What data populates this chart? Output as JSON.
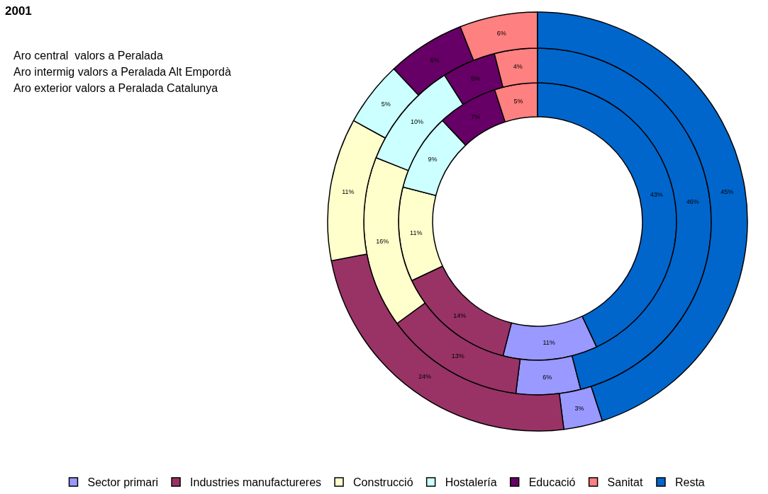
{
  "chart_data": {
    "type": "donut",
    "title": "2001",
    "annotations": [
      "Aro central  valors a Peralada",
      "Aro intermig valors a Peralada Alt Empordà",
      "Aro exterior valors a Peralada Catalunya"
    ],
    "categories": [
      "Sector primari",
      "Industries manufactureres",
      "Construcció",
      "Hostalería",
      "Educació",
      "Sanitat",
      "Resta"
    ],
    "colors": [
      "#9999ff",
      "#993366",
      "#ffffcc",
      "#ccffff",
      "#660066",
      "#ff8080",
      "#0066cc"
    ],
    "series": [
      {
        "values": [
          11,
          14,
          11,
          9,
          7,
          5,
          43
        ],
        "value_labels": [
          "11%",
          "14%",
          "11%",
          "9%",
          "7%",
          "5%",
          "43%"
        ]
      },
      {
        "values": [
          6,
          13,
          16,
          10,
          5,
          4,
          46
        ],
        "value_labels": [
          "6%",
          "13%",
          "16%",
          "10%",
          "5%",
          "4%",
          "46%"
        ]
      },
      {
        "values": [
          3,
          24,
          11,
          5,
          6,
          6,
          45
        ],
        "value_labels": [
          "3%",
          "24%",
          "11%",
          "5%",
          "6%",
          "6%",
          "45%"
        ]
      }
    ],
    "legend": "bottom"
  }
}
